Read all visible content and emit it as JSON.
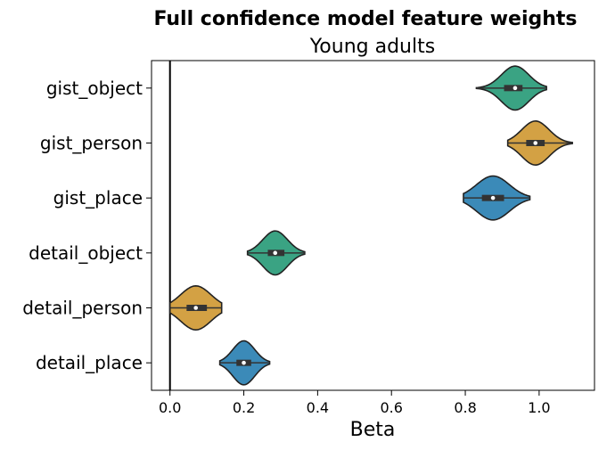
{
  "chart_data": {
    "type": "violin",
    "title": "Full confidence model feature weights",
    "subtitle": "Young adults",
    "xlabel": "Beta",
    "ylabel": "",
    "xlim": [
      -0.05,
      1.15
    ],
    "xticks": [
      "0.0",
      "0.2",
      "0.4",
      "0.6",
      "0.8",
      "1.0"
    ],
    "reference_line_x": 0.0,
    "grid": false,
    "categories": [
      "gist_object",
      "gist_person",
      "gist_place",
      "detail_object",
      "detail_person",
      "detail_place"
    ],
    "colors": [
      "#3aa383",
      "#d3a144",
      "#3b8ab8",
      "#3aa383",
      "#d3a144",
      "#3b8ab8"
    ],
    "median": [
      0.935,
      0.99,
      0.875,
      0.285,
      0.07,
      0.2
    ],
    "q1": [
      0.905,
      0.965,
      0.845,
      0.265,
      0.045,
      0.18
    ],
    "q3": [
      0.955,
      1.015,
      0.905,
      0.31,
      0.1,
      0.22
    ],
    "min": [
      0.83,
      0.915,
      0.795,
      0.21,
      0.0,
      0.135
    ],
    "max": [
      1.02,
      1.09,
      0.975,
      0.365,
      0.14,
      0.27
    ]
  }
}
